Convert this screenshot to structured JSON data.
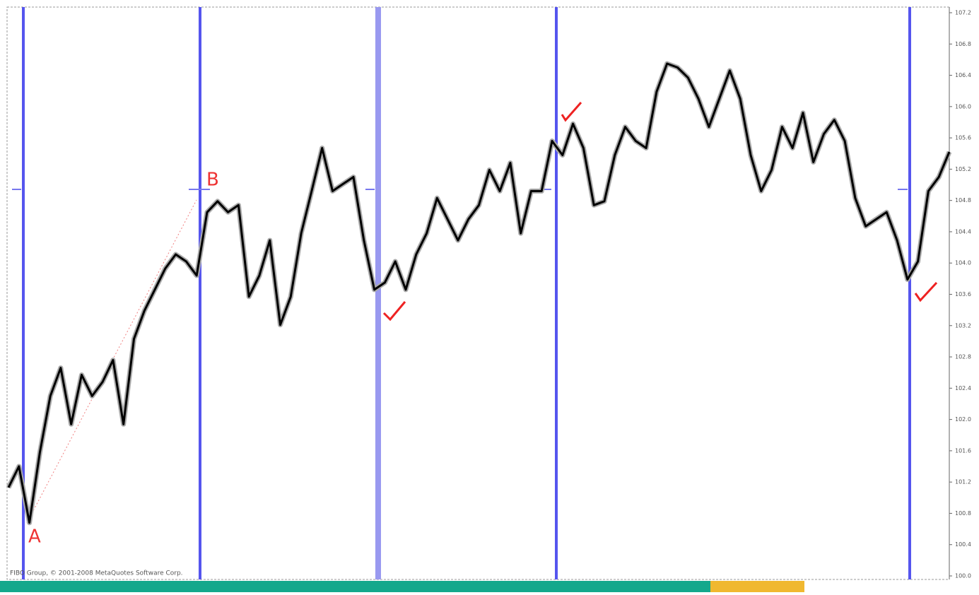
{
  "chart_data": {
    "type": "line",
    "annotations": {
      "point_a": "A",
      "point_b": "B",
      "copyright": "FIBO Group, © 2001-2008 MetaQuotes Software Corp."
    },
    "series": [
      {
        "color": "#000000",
        "values": [
          101.13,
          101.4,
          100.68,
          101.58,
          102.3,
          102.66,
          101.94,
          102.57,
          102.3,
          102.48,
          102.76,
          101.94,
          103.03,
          103.39,
          103.66,
          103.93,
          104.11,
          104.02,
          103.84,
          104.65,
          104.79,
          104.65,
          104.74,
          103.57,
          103.84,
          104.29,
          103.21,
          103.57,
          104.38,
          104.92,
          105.47,
          104.92,
          105.01,
          105.1,
          104.29,
          103.66,
          103.75,
          104.02,
          103.66,
          104.11,
          104.38,
          104.83,
          104.56,
          104.29,
          104.56,
          104.74,
          105.19,
          104.92,
          105.28,
          104.38,
          104.92,
          104.92,
          105.56,
          105.38,
          105.78,
          105.47,
          104.74,
          104.79,
          105.38,
          105.74,
          105.56,
          105.47,
          106.19,
          106.55,
          106.5,
          106.37,
          106.1,
          105.74,
          106.1,
          106.46,
          106.1,
          105.38,
          104.92,
          105.19,
          105.74,
          105.47,
          105.92,
          105.29,
          105.65,
          105.83,
          105.56,
          104.83,
          104.47,
          104.56,
          104.65,
          104.29,
          103.79,
          104.02,
          104.92,
          105.1,
          105.42
        ]
      }
    ],
    "ylim": [
      100,
      107.2
    ],
    "yticks": [
      {
        "value": 100,
        "label": "100.0"
      },
      100.4,
      100.8,
      101.2,
      101.6,
      {
        "value": 102,
        "label": "102.0"
      },
      102.4,
      102.8,
      103.2,
      103.6,
      {
        "value": 104,
        "label": "104.0"
      },
      104.4,
      104.8,
      105.2,
      105.6,
      {
        "value": 106,
        "label": "106.0"
      },
      106.4,
      106.8,
      107.2
    ]
  }
}
